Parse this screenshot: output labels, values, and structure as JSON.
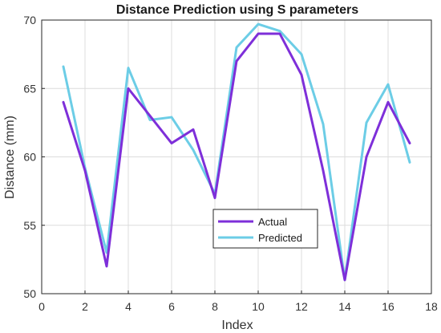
{
  "chart_data": {
    "type": "line",
    "title": "Distance Prediction using S parameters",
    "xlabel": "Index",
    "ylabel": "Distance (mm)",
    "xlim": [
      0,
      18
    ],
    "ylim": [
      50,
      70
    ],
    "xticks": [
      "0",
      "2",
      "4",
      "6",
      "8",
      "10",
      "12",
      "14",
      "16",
      "18"
    ],
    "yticks": [
      "50",
      "55",
      "60",
      "65",
      "70"
    ],
    "grid": true,
    "legend_position": "center-bottom",
    "x": [
      1,
      2,
      3,
      4,
      5,
      6,
      7,
      8,
      9,
      10,
      11,
      12,
      13,
      14,
      15,
      16,
      17
    ],
    "series": [
      {
        "name": "Actual",
        "color": "#7e2fd9",
        "values": [
          64,
          59,
          52,
          65,
          63,
          61,
          62,
          57,
          67,
          69,
          69,
          66,
          59,
          51,
          60,
          64,
          61
        ]
      },
      {
        "name": "Predicted",
        "color": "#6ccde6",
        "values": [
          66.6,
          59.2,
          53,
          66.5,
          62.7,
          62.9,
          60.5,
          57.3,
          68,
          69.7,
          69.2,
          67.5,
          62.4,
          51,
          62.5,
          65.3,
          59.6
        ]
      }
    ]
  }
}
